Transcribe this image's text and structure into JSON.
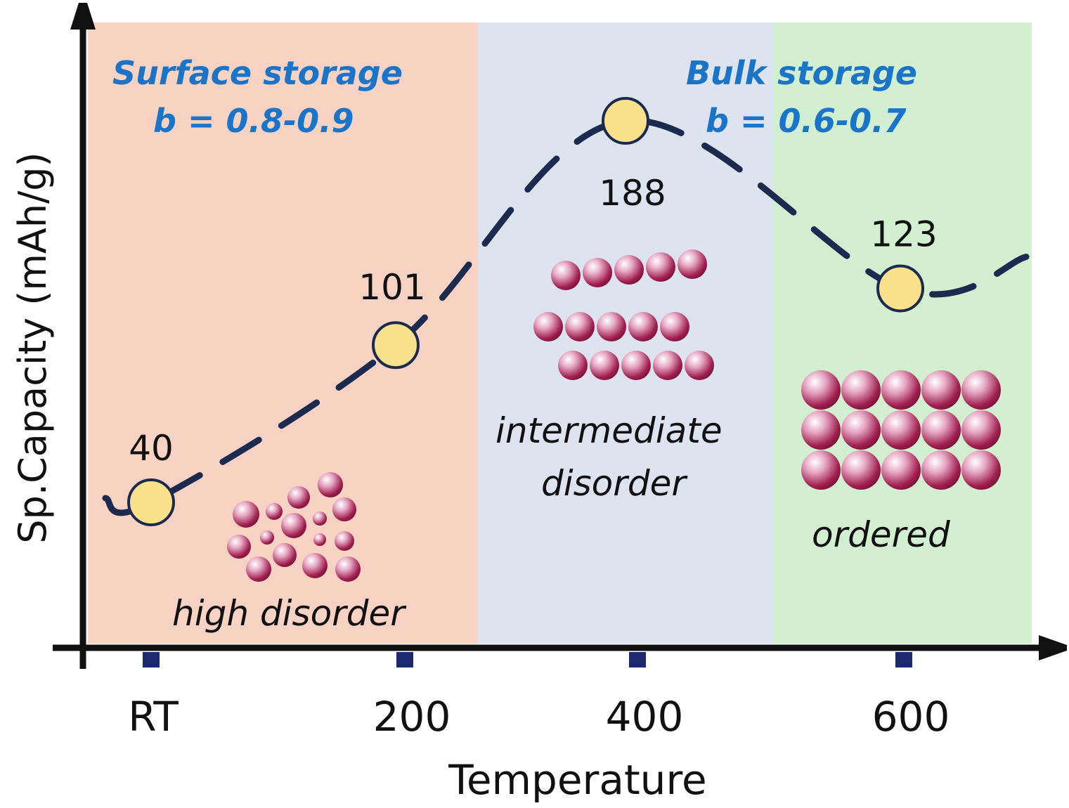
{
  "chart_data": {
    "type": "line",
    "xlabel": "Temperature",
    "ylabel": "Sp.Capacity (mAh/g)",
    "categories": [
      "RT",
      "200",
      "400",
      "600"
    ],
    "values": [
      40,
      101,
      188,
      123
    ],
    "data_labels": [
      "40",
      "101",
      "188",
      "123"
    ],
    "line_style": "dashed",
    "grid": false,
    "colors": {
      "line": "#1b2a4e",
      "marker": "#fbe18c",
      "text_accent": "#1a74c8",
      "sphere": "#a0204f"
    },
    "regions": [
      {
        "label": "high disorder",
        "color": "#f8d2c3"
      },
      {
        "label_lines": [
          "intermediate",
          "disorder"
        ],
        "color": "#dde4f0"
      },
      {
        "label": "ordered",
        "color": "#d3efd2"
      }
    ],
    "annotations": {
      "surface": {
        "title": "Surface storage",
        "b": "b = 0.8-0.9"
      },
      "bulk": {
        "title": "Bulk storage",
        "b": "b = 0.6-0.7"
      }
    }
  }
}
